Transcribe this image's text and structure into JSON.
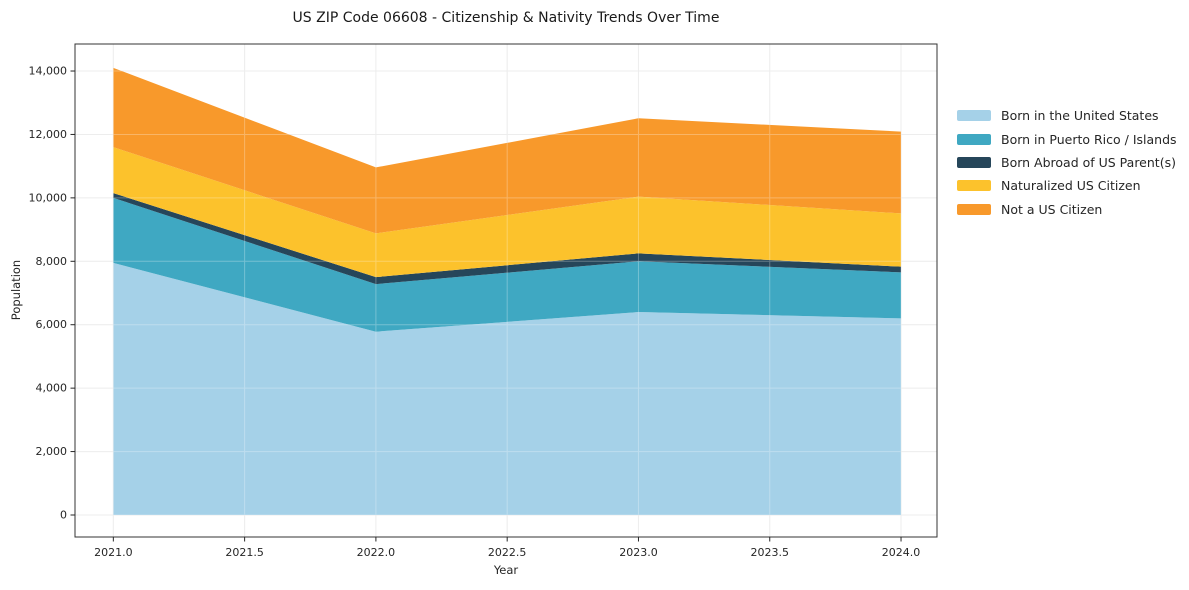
{
  "chart_data": {
    "type": "area",
    "stacked": true,
    "title": "US ZIP Code 06608 - Citizenship & Nativity Trends Over Time",
    "xlabel": "Year",
    "ylabel": "Population",
    "x": [
      2021,
      2022,
      2023,
      2024
    ],
    "series": [
      {
        "name": "Born in the United States",
        "color": "#a5d1e8",
        "values": [
          7950,
          5780,
          6400,
          6200
        ]
      },
      {
        "name": "Born in Puerto Rico / Islands",
        "color": "#3fa8c2",
        "values": [
          2050,
          1500,
          1600,
          1450
        ]
      },
      {
        "name": "Born Abroad of US Parent(s)",
        "color": "#26465a",
        "values": [
          150,
          220,
          250,
          180
        ]
      },
      {
        "name": "Naturalized US Citizen",
        "color": "#fcc22c",
        "values": [
          1450,
          1380,
          1790,
          1680
        ]
      },
      {
        "name": "Not a US Citizen",
        "color": "#f8992b",
        "values": [
          2500,
          2080,
          2470,
          2580
        ]
      }
    ],
    "stacked_totals": [
      14100,
      10960,
      12510,
      12090
    ],
    "xticks": {
      "values": [
        2021.0,
        2021.5,
        2022.0,
        2022.5,
        2023.0,
        2023.5,
        2024.0
      ],
      "labels": [
        "2021.0",
        "2021.5",
        "2022.0",
        "2022.5",
        "2023.0",
        "2023.5",
        "2024.0"
      ]
    },
    "yticks": {
      "values": [
        0,
        2000,
        4000,
        6000,
        8000,
        10000,
        12000,
        14000
      ],
      "labels": [
        "0",
        "2,000",
        "4,000",
        "6,000",
        "8,000",
        "10,000",
        "12,000",
        "14,000"
      ]
    },
    "xlim": [
      2020.854,
      2024.137
    ],
    "ylim": [
      -694,
      14852
    ],
    "grid": true,
    "legend_position": "right outside"
  },
  "style": {
    "background": "#ffffff",
    "grid_color": "#e7e7e7",
    "grid_overlay_color": "#ffffff",
    "spine_color": "#333333",
    "tick_color": "#262626",
    "text_color": "#262626",
    "title_color": "#1a1a1a"
  }
}
